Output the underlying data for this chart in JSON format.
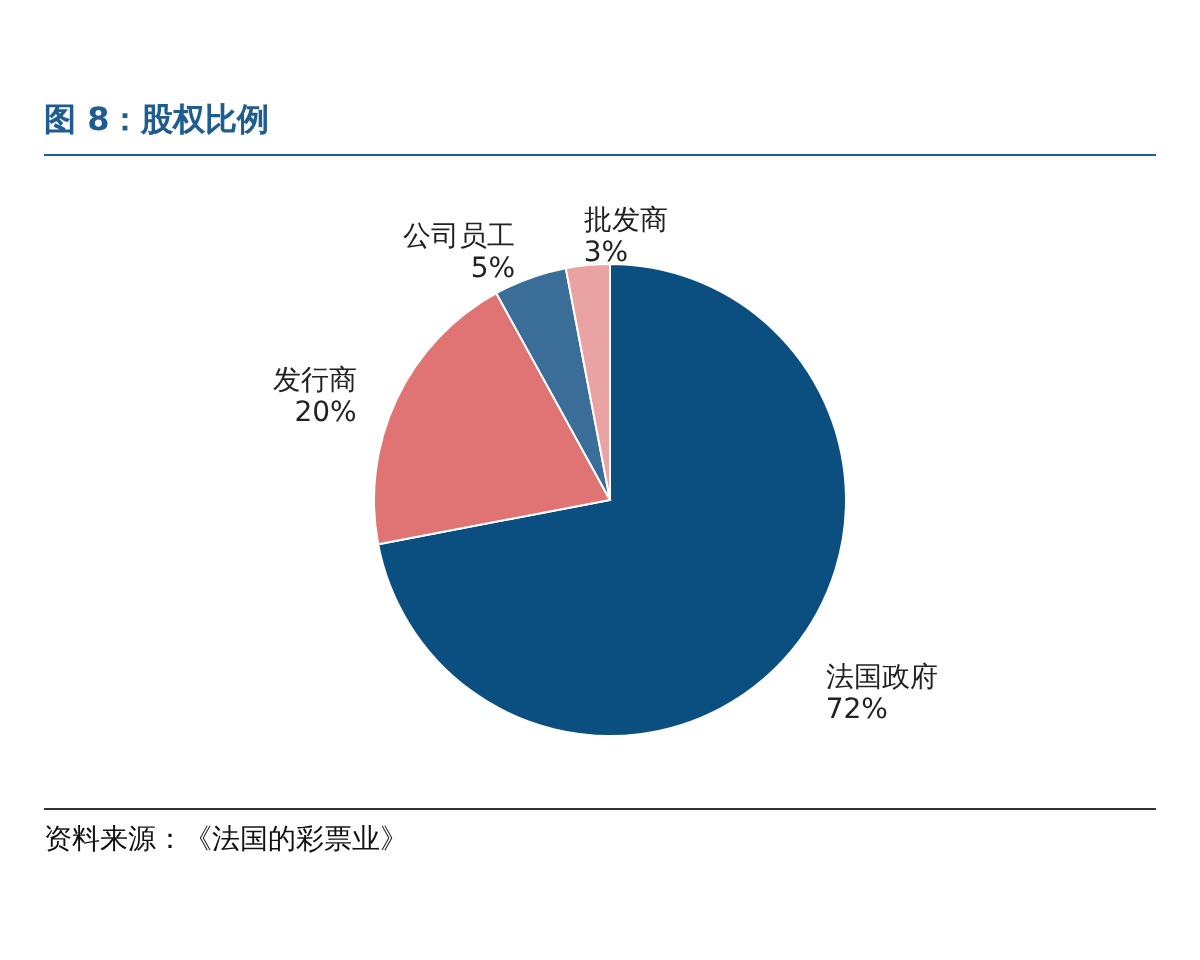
{
  "chart_data": {
    "type": "pie",
    "title": "图 8：股权比例",
    "categories": [
      "法国政府",
      "发行商",
      "公司员工",
      "批发商"
    ],
    "values": [
      72,
      20,
      5,
      3
    ],
    "colors": [
      "#0b4f80",
      "#e07373",
      "#3a6e99",
      "#e9a3a3"
    ],
    "value_labels": [
      "72%",
      "20%",
      "5%",
      "3%"
    ],
    "legend": false,
    "annotations": [
      "资料来源：《法国的彩票业》"
    ]
  }
}
